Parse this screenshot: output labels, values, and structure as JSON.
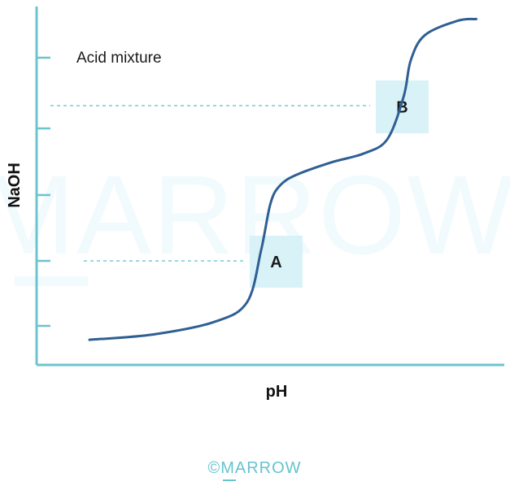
{
  "watermark": {
    "text": "MARROW"
  },
  "footer": {
    "text": "©MARROW"
  },
  "chart_data": {
    "type": "line",
    "title": "",
    "annotation": "Acid mixture",
    "xlabel": "pH",
    "ylabel": "NaOH",
    "grid": false,
    "legend": "none",
    "x_tick_labels": [],
    "y_tick_labels": [],
    "y_tick_count": 5,
    "xlim": [
      0,
      10
    ],
    "ylim": [
      0,
      10
    ],
    "series": [
      {
        "x": [
          1.13,
          2.5,
          3.8,
          4.5,
          4.8,
          5.0,
          5.2,
          5.55,
          6.3,
          7.0,
          7.5,
          7.85,
          8.0,
          8.3,
          9.0,
          9.4
        ],
        "y": [
          0.7,
          0.85,
          1.2,
          1.75,
          3.2,
          4.5,
          5.0,
          5.3,
          5.65,
          5.9,
          6.3,
          7.5,
          8.5,
          9.2,
          9.6,
          9.65
        ],
        "color": "#2f5f93"
      }
    ],
    "markers": [
      {
        "label": "A",
        "y": 3.2
      },
      {
        "label": "B",
        "y": 7.9
      }
    ]
  }
}
